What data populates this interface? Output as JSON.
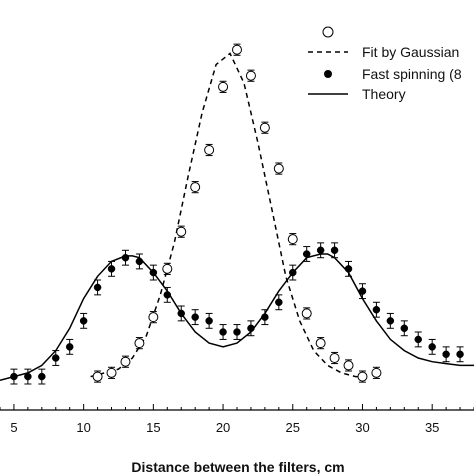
{
  "chart_data": {
    "type": "scatter",
    "xlabel": "Distance between the filters, cm",
    "ylabel": "",
    "xlim": [
      4.0,
      38.0
    ],
    "ylim": [
      0.0,
      1.05
    ],
    "x_ticks": [
      5,
      10,
      15,
      20,
      25,
      30,
      35
    ],
    "grid": false,
    "legend_position": "top-right",
    "legend": [
      {
        "label": "",
        "marker": "open-circle"
      },
      {
        "label": "Fit by Gaussian",
        "line": "dashed"
      },
      {
        "label": "Fast spinning (8",
        "marker": "filled-circle"
      },
      {
        "label": "Theory",
        "line": "solid"
      }
    ],
    "series": [
      {
        "marker": "open-circle",
        "x": [
          11,
          12,
          13,
          14,
          15,
          16,
          17,
          18,
          19,
          20,
          21,
          22,
          23,
          24,
          25,
          26,
          27,
          28,
          29,
          30,
          31
        ],
        "y": [
          0.09,
          0.1,
          0.13,
          0.18,
          0.25,
          0.38,
          0.48,
          0.6,
          0.7,
          0.87,
          0.97,
          0.9,
          0.76,
          0.65,
          0.46,
          0.26,
          0.18,
          0.14,
          0.12,
          0.09,
          0.1
        ],
        "yerr": 0.015
      },
      {
        "marker": "filled-circle",
        "x": [
          5,
          6,
          7,
          8,
          9,
          10,
          11,
          12,
          13,
          14,
          15,
          16,
          17,
          18,
          19,
          20,
          21,
          22,
          23,
          24,
          25,
          26,
          27,
          28,
          29,
          30,
          31,
          32,
          33,
          34,
          35,
          36,
          37
        ],
        "y": [
          0.09,
          0.09,
          0.09,
          0.14,
          0.17,
          0.24,
          0.33,
          0.38,
          0.41,
          0.4,
          0.37,
          0.31,
          0.26,
          0.25,
          0.24,
          0.21,
          0.21,
          0.22,
          0.25,
          0.29,
          0.37,
          0.42,
          0.43,
          0.43,
          0.38,
          0.32,
          0.27,
          0.24,
          0.22,
          0.19,
          0.17,
          0.15,
          0.15
        ],
        "yerr": 0.02
      },
      {
        "line": "dashed",
        "x": [
          10.5,
          11.5,
          12.5,
          13.5,
          14.5,
          15.5,
          16.5,
          17.5,
          18.5,
          19.5,
          20.5,
          21.5,
          22.5,
          23.5,
          24.5,
          25.5,
          26.5,
          27.5,
          28.5,
          29.5,
          30.5
        ],
        "y": [
          0.09,
          0.1,
          0.11,
          0.14,
          0.2,
          0.31,
          0.45,
          0.63,
          0.8,
          0.93,
          0.96,
          0.88,
          0.72,
          0.54,
          0.36,
          0.24,
          0.16,
          0.12,
          0.1,
          0.09,
          0.09
        ]
      },
      {
        "line": "solid",
        "x": [
          4.0,
          5.0,
          6.0,
          7.0,
          8.0,
          9.0,
          10.0,
          11.0,
          12.0,
          13.0,
          13.5,
          14.0,
          15.0,
          16.0,
          17.0,
          18.0,
          19.0,
          20.0,
          21.0,
          22.0,
          23.0,
          24.0,
          25.0,
          26.0,
          27.0,
          27.5,
          28.0,
          29.0,
          30.0,
          31.0,
          32.0,
          33.0,
          34.0,
          35.0,
          36.0,
          37.0,
          38.0
        ],
        "y": [
          0.08,
          0.09,
          0.1,
          0.12,
          0.16,
          0.22,
          0.3,
          0.36,
          0.4,
          0.415,
          0.415,
          0.41,
          0.37,
          0.32,
          0.26,
          0.21,
          0.18,
          0.17,
          0.18,
          0.21,
          0.26,
          0.32,
          0.37,
          0.41,
          0.42,
          0.42,
          0.41,
          0.37,
          0.3,
          0.24,
          0.19,
          0.16,
          0.14,
          0.13,
          0.125,
          0.12,
          0.12
        ]
      }
    ]
  }
}
